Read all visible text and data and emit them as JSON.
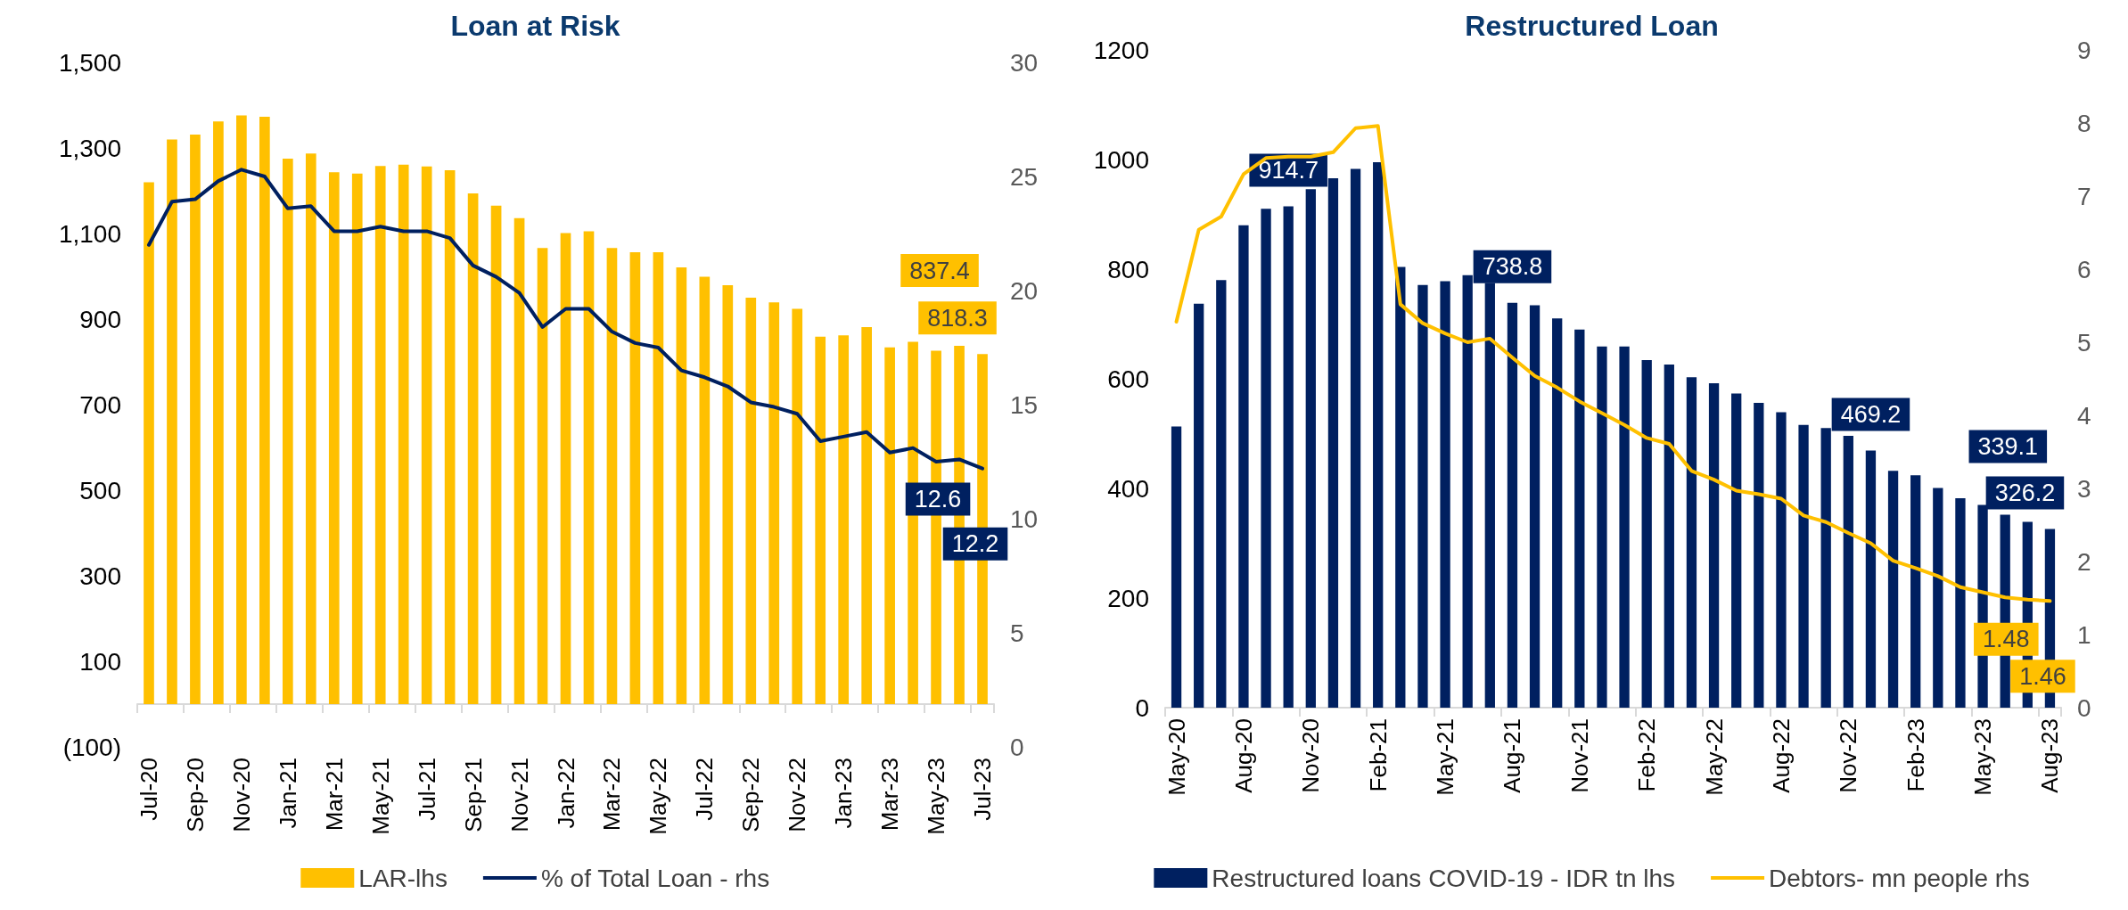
{
  "chart_data": [
    {
      "type": "bar",
      "title": "Loan at Risk",
      "categories": [
        "Jul-20",
        null,
        "Sep-20",
        null,
        "Nov-20",
        null,
        "Jan-21",
        null,
        "Mar-21",
        null,
        "May-21",
        null,
        "Jul-21",
        null,
        "Sep-21",
        null,
        "Nov-21",
        null,
        "Jan-22",
        null,
        "Mar-22",
        null,
        "May-22",
        null,
        "Jul-22",
        null,
        "Sep-22",
        null,
        "Nov-22",
        null,
        "Jan-23",
        null,
        "Mar-23",
        null,
        "May-23",
        null,
        "Jul-23"
      ],
      "series": [
        {
          "name": "LAR-lhs",
          "type": "bar",
          "color": "#ffc000",
          "values": [
            1220,
            1320,
            1331,
            1362,
            1376,
            1373,
            1275,
            1287,
            1243,
            1240,
            1258,
            1261,
            1257,
            1248,
            1194,
            1165,
            1136,
            1066,
            1101,
            1105,
            1066,
            1056,
            1056,
            1021,
            999,
            979,
            950,
            939,
            924,
            859,
            862,
            881,
            834,
            847,
            826,
            837.4,
            818.3
          ],
          "value_labels": [
            null,
            null,
            null,
            null,
            null,
            null,
            null,
            null,
            null,
            null,
            null,
            null,
            null,
            null,
            null,
            null,
            null,
            null,
            null,
            null,
            null,
            null,
            null,
            null,
            null,
            null,
            null,
            null,
            null,
            null,
            null,
            null,
            null,
            null,
            null,
            "837.4",
            "818.3"
          ]
        },
        {
          "name": "% of Total Loan - rhs",
          "type": "line",
          "axis": "y2",
          "color": "#002060",
          "values": [
            22.0,
            23.9,
            24.0,
            24.8,
            25.3,
            25.0,
            23.6,
            23.7,
            22.6,
            22.6,
            22.8,
            22.6,
            22.6,
            22.3,
            21.1,
            20.6,
            19.9,
            18.4,
            19.2,
            19.2,
            18.2,
            17.7,
            17.5,
            16.5,
            16.2,
            15.8,
            15.1,
            14.9,
            14.6,
            13.4,
            13.6,
            13.8,
            12.9,
            13.1,
            12.5,
            12.6,
            12.2
          ],
          "value_labels": [
            null,
            null,
            null,
            null,
            null,
            null,
            null,
            null,
            null,
            null,
            null,
            null,
            null,
            null,
            null,
            null,
            null,
            null,
            null,
            null,
            null,
            null,
            null,
            null,
            null,
            null,
            null,
            null,
            null,
            null,
            null,
            null,
            null,
            null,
            null,
            "12.6",
            "12.2"
          ]
        }
      ],
      "ylim": [
        -100,
        1500
      ],
      "yticks": [
        {
          "value": -100,
          "label": "(100)"
        },
        100,
        300,
        500,
        700,
        900,
        {
          "value": 1100,
          "label": "1,100"
        },
        {
          "value": 1300,
          "label": "1,300"
        },
        {
          "value": 1500,
          "label": "1,500"
        }
      ],
      "y2lim": [
        0,
        30
      ],
      "y2ticks": [
        0,
        5,
        10,
        15,
        20,
        25,
        30
      ],
      "legend": "bottom",
      "marker": "none"
    },
    {
      "type": "bar",
      "title": "Restructured Loan",
      "categories": [
        "May-20",
        null,
        null,
        "Aug-20",
        null,
        null,
        "Nov-20",
        null,
        null,
        "Feb-21",
        null,
        null,
        "May-21",
        null,
        null,
        "Aug-21",
        null,
        null,
        "Nov-21",
        null,
        null,
        "Feb-22",
        null,
        null,
        "May-22",
        null,
        null,
        "Aug-22",
        null,
        null,
        "Nov-22",
        null,
        null,
        "Feb-23",
        null,
        null,
        "May-23",
        null,
        null,
        "Aug-23"
      ],
      "series": [
        {
          "name": "Restructured loans COVID-19 - IDR tn lhs",
          "type": "bar",
          "color": "#002060",
          "values": [
            513,
            737,
            780,
            880,
            910,
            914.7,
            946,
            966,
            983,
            995,
            804,
            771,
            778,
            789,
            775,
            738.8,
            734,
            710,
            690,
            659,
            659,
            634,
            626,
            603,
            592,
            573,
            556,
            539,
            516,
            510,
            496,
            469.2,
            432,
            424,
            401,
            382,
            370,
            352,
            339.1,
            326.2
          ],
          "value_labels": [
            null,
            null,
            null,
            null,
            null,
            "914.7",
            null,
            null,
            null,
            null,
            null,
            null,
            null,
            null,
            null,
            "738.8",
            null,
            null,
            null,
            null,
            null,
            null,
            null,
            null,
            null,
            null,
            null,
            null,
            null,
            null,
            null,
            "469.2",
            null,
            null,
            null,
            null,
            null,
            null,
            "339.1",
            "326.2"
          ]
        },
        {
          "name": "Debtors- mn people rhs",
          "type": "line",
          "axis": "y2",
          "color": "#ffc000",
          "values": [
            5.28,
            6.54,
            6.72,
            7.3,
            7.52,
            7.54,
            7.54,
            7.6,
            7.93,
            7.96,
            5.52,
            5.26,
            5.12,
            5.0,
            5.05,
            4.79,
            4.54,
            4.38,
            4.19,
            4.03,
            3.87,
            3.69,
            3.61,
            3.24,
            3.12,
            2.97,
            2.92,
            2.86,
            2.63,
            2.54,
            2.39,
            2.25,
            2.01,
            1.91,
            1.8,
            1.65,
            1.58,
            1.51,
            1.48,
            1.46
          ],
          "value_labels": [
            null,
            null,
            null,
            null,
            null,
            null,
            null,
            null,
            null,
            null,
            null,
            null,
            null,
            null,
            null,
            null,
            null,
            null,
            null,
            null,
            null,
            null,
            null,
            null,
            null,
            null,
            null,
            null,
            null,
            null,
            null,
            null,
            null,
            null,
            null,
            null,
            null,
            null,
            "1.48",
            "1.46"
          ]
        }
      ],
      "ylim": [
        0,
        1200
      ],
      "yticks": [
        0,
        200,
        400,
        600,
        800,
        1000,
        1200
      ],
      "y2lim": [
        0,
        9
      ],
      "y2ticks": [
        0,
        1,
        2,
        3,
        4,
        5,
        6,
        7,
        8,
        9
      ],
      "legend": "bottom",
      "marker": "none"
    }
  ]
}
